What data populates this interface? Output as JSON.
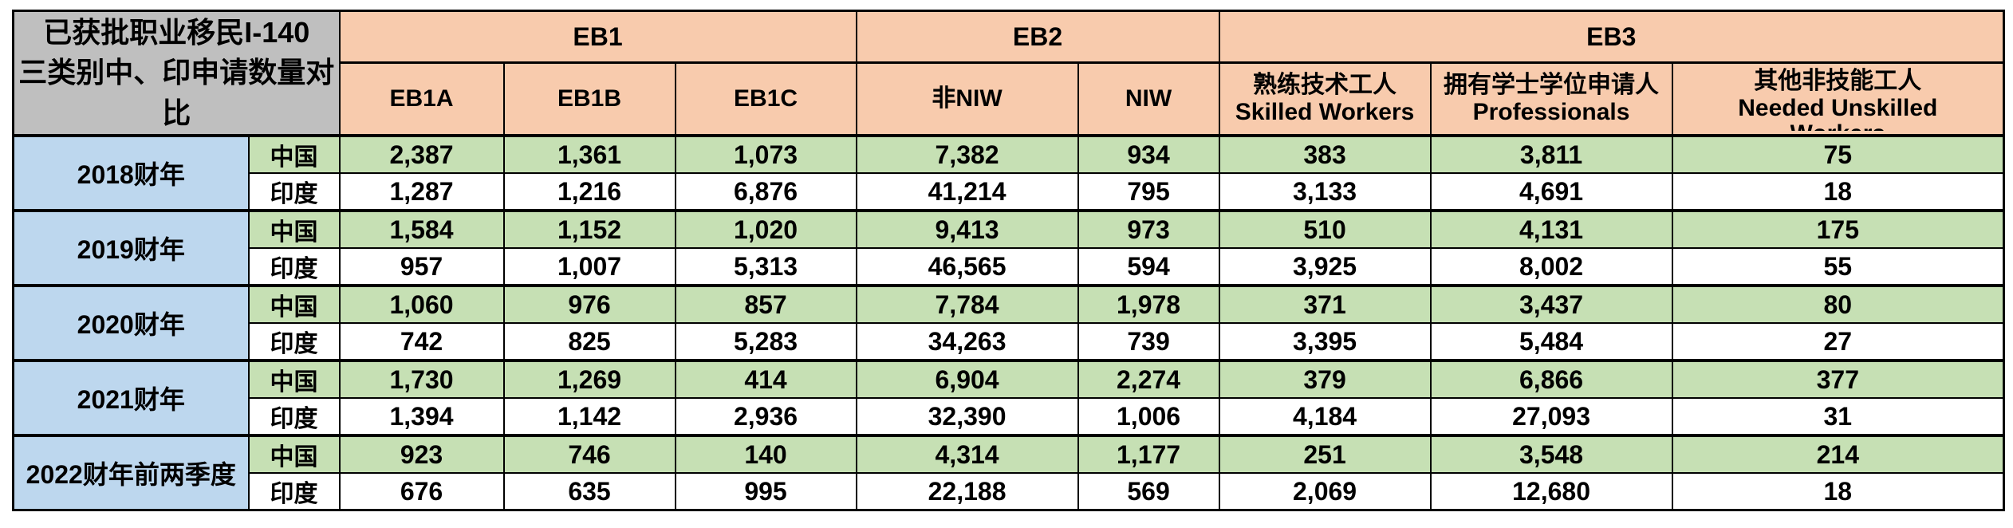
{
  "colors": {
    "corner_bg": "#BFBFBF",
    "header_bg": "#F8CBAD",
    "year_bg": "#BDD7EE",
    "china_row_bg": "#C6E0B4",
    "india_row_bg": "#FFFFFF",
    "border": "#000000"
  },
  "table": {
    "corner_title_line1": "已获批职业移民I-140",
    "corner_title_line2": "三类别中、印申请数量对比",
    "groups": [
      {
        "id": "eb1",
        "label": "EB1"
      },
      {
        "id": "eb2",
        "label": "EB2"
      },
      {
        "id": "eb3",
        "label": "EB3"
      }
    ],
    "columns": [
      {
        "id": "eb1a",
        "lines": [
          "EB1A"
        ],
        "clip_last": false
      },
      {
        "id": "eb1b",
        "lines": [
          "EB1B"
        ],
        "clip_last": false
      },
      {
        "id": "eb1c",
        "lines": [
          "EB1C"
        ],
        "clip_last": false
      },
      {
        "id": "non-niw",
        "lines": [
          "非NIW"
        ],
        "clip_last": false
      },
      {
        "id": "niw",
        "lines": [
          "NIW"
        ],
        "clip_last": false
      },
      {
        "id": "skilled-workers",
        "lines": [
          "熟练技术工人",
          "Skilled Workers"
        ],
        "clip_last": false
      },
      {
        "id": "professionals",
        "lines": [
          "拥有学士学位申请人",
          "Professionals"
        ],
        "clip_last": false
      },
      {
        "id": "unskilled-workers",
        "lines": [
          "其他非技能工人",
          "Needed Unskilled",
          "Workers"
        ],
        "clip_last": true
      }
    ],
    "year_groups": [
      {
        "year": "2018财年",
        "rows": [
          {
            "country": "中国",
            "values": [
              "2,387",
              "1,361",
              "1,073",
              "7,382",
              "934",
              "383",
              "3,811",
              "75"
            ]
          },
          {
            "country": "印度",
            "values": [
              "1,287",
              "1,216",
              "6,876",
              "41,214",
              "795",
              "3,133",
              "4,691",
              "18"
            ]
          }
        ]
      },
      {
        "year": "2019财年",
        "rows": [
          {
            "country": "中国",
            "values": [
              "1,584",
              "1,152",
              "1,020",
              "9,413",
              "973",
              "510",
              "4,131",
              "175"
            ]
          },
          {
            "country": "印度",
            "values": [
              "957",
              "1,007",
              "5,313",
              "46,565",
              "594",
              "3,925",
              "8,002",
              "55"
            ]
          }
        ]
      },
      {
        "year": "2020财年",
        "rows": [
          {
            "country": "中国",
            "values": [
              "1,060",
              "976",
              "857",
              "7,784",
              "1,978",
              "371",
              "3,437",
              "80"
            ]
          },
          {
            "country": "印度",
            "values": [
              "742",
              "825",
              "5,283",
              "34,263",
              "739",
              "3,395",
              "5,484",
              "27"
            ]
          }
        ]
      },
      {
        "year": "2021财年",
        "rows": [
          {
            "country": "中国",
            "values": [
              "1,730",
              "1,269",
              "414",
              "6,904",
              "2,274",
              "379",
              "6,866",
              "377"
            ]
          },
          {
            "country": "印度",
            "values": [
              "1,394",
              "1,142",
              "2,936",
              "32,390",
              "1,006",
              "4,184",
              "27,093",
              "31"
            ]
          }
        ]
      },
      {
        "year": "2022财年前两季度",
        "rows": [
          {
            "country": "中国",
            "values": [
              "923",
              "746",
              "140",
              "4,314",
              "1,177",
              "251",
              "3,548",
              "214"
            ]
          },
          {
            "country": "印度",
            "values": [
              "676",
              "635",
              "995",
              "22,188",
              "569",
              "2,069",
              "12,680",
              "18"
            ]
          }
        ]
      }
    ]
  },
  "chart_data": {
    "type": "table",
    "title": "已获批职业移民I-140 三类别中、印申请数量对比",
    "column_groups": [
      "EB1",
      "EB1",
      "EB1",
      "EB2",
      "EB2",
      "EB3",
      "EB3",
      "EB3"
    ],
    "columns": [
      "EB1A",
      "EB1B",
      "EB1C",
      "非NIW",
      "NIW",
      "熟练技术工人 Skilled Workers",
      "拥有学士学位申请人 Professionals",
      "其他非技能工人 Needed Unskilled Workers"
    ],
    "rows": [
      {
        "year": "2018财年",
        "country": "中国",
        "values": [
          2387,
          1361,
          1073,
          7382,
          934,
          383,
          3811,
          75
        ]
      },
      {
        "year": "2018财年",
        "country": "印度",
        "values": [
          1287,
          1216,
          6876,
          41214,
          795,
          3133,
          4691,
          18
        ]
      },
      {
        "year": "2019财年",
        "country": "中国",
        "values": [
          1584,
          1152,
          1020,
          9413,
          973,
          510,
          4131,
          175
        ]
      },
      {
        "year": "2019财年",
        "country": "印度",
        "values": [
          957,
          1007,
          5313,
          46565,
          594,
          3925,
          8002,
          55
        ]
      },
      {
        "year": "2020财年",
        "country": "中国",
        "values": [
          1060,
          976,
          857,
          7784,
          1978,
          371,
          3437,
          80
        ]
      },
      {
        "year": "2020财年",
        "country": "印度",
        "values": [
          742,
          825,
          5283,
          34263,
          739,
          3395,
          5484,
          27
        ]
      },
      {
        "year": "2021财年",
        "country": "中国",
        "values": [
          1730,
          1269,
          414,
          6904,
          2274,
          379,
          6866,
          377
        ]
      },
      {
        "year": "2021财年",
        "country": "印度",
        "values": [
          1394,
          1142,
          2936,
          32390,
          1006,
          4184,
          27093,
          31
        ]
      },
      {
        "year": "2022财年前两季度",
        "country": "中国",
        "values": [
          923,
          746,
          140,
          4314,
          1177,
          251,
          3548,
          214
        ]
      },
      {
        "year": "2022财年前两季度",
        "country": "印度",
        "values": [
          676,
          635,
          995,
          22188,
          569,
          2069,
          12680,
          18
        ]
      }
    ]
  }
}
